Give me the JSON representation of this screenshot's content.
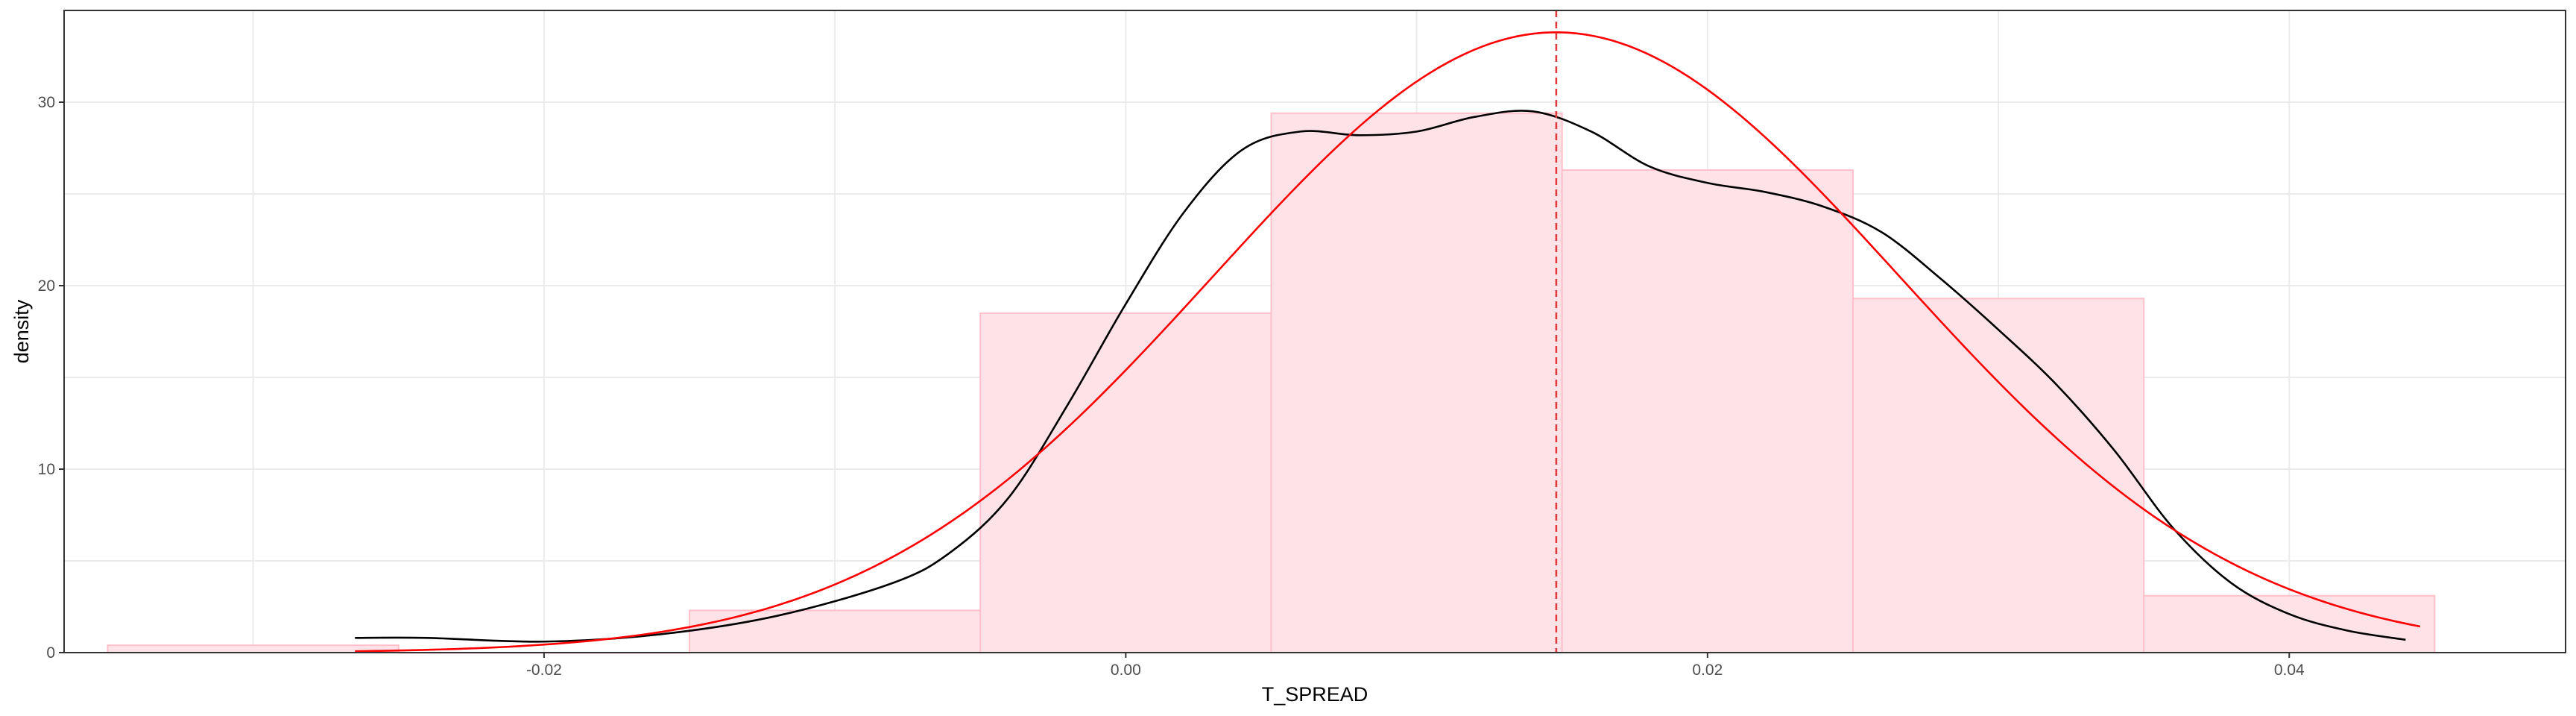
{
  "chart_data": {
    "type": "histogram",
    "title": "",
    "xlabel": "T_SPREAD",
    "ylabel": "density",
    "xlim": [
      -0.0365,
      0.0495
    ],
    "ylim": [
      0,
      35
    ],
    "grid": true,
    "x_ticks": [
      -0.02,
      0.0,
      0.02,
      0.04
    ],
    "x_tick_labels": [
      "-0.02",
      "0.00",
      "0.02",
      "0.04"
    ],
    "y_ticks": [
      0,
      10,
      20,
      30
    ],
    "y_tick_labels": [
      "0",
      "10",
      "20",
      "30"
    ],
    "bins": [
      {
        "x0": -0.035,
        "x1": -0.025,
        "density": 0.4
      },
      {
        "x0": -0.025,
        "x1": -0.015,
        "density": 0.0
      },
      {
        "x0": -0.015,
        "x1": -0.005,
        "density": 2.3
      },
      {
        "x0": -0.005,
        "x1": 0.005,
        "density": 18.5
      },
      {
        "x0": 0.005,
        "x1": 0.015,
        "density": 29.4
      },
      {
        "x0": 0.015,
        "x1": 0.025,
        "density": 26.3
      },
      {
        "x0": 0.025,
        "x1": 0.035,
        "density": 19.3
      },
      {
        "x0": 0.035,
        "x1": 0.045,
        "density": 3.1
      }
    ],
    "kde": {
      "x": [
        -0.0265,
        -0.024,
        -0.02,
        -0.016,
        -0.012,
        -0.008,
        -0.006,
        -0.004,
        -0.002,
        0.0,
        0.002,
        0.004,
        0.006,
        0.008,
        0.01,
        0.012,
        0.014,
        0.016,
        0.018,
        0.02,
        0.022,
        0.024,
        0.026,
        0.028,
        0.03,
        0.032,
        0.034,
        0.036,
        0.038,
        0.04,
        0.042,
        0.044
      ],
      "y": [
        0.8,
        0.8,
        0.6,
        1.0,
        2.0,
        3.8,
        5.5,
        8.5,
        13.5,
        19.0,
        24.0,
        27.4,
        28.4,
        28.2,
        28.4,
        29.2,
        29.5,
        28.4,
        26.5,
        25.6,
        25.1,
        24.3,
        22.9,
        20.4,
        17.6,
        14.6,
        11.0,
        6.8,
        3.8,
        2.1,
        1.2,
        0.7
      ]
    },
    "normal_fit": {
      "mean": 0.0148,
      "sd": 0.0118,
      "x_range": [
        -0.0265,
        0.0445
      ]
    },
    "mean_line": {
      "x": 0.0148,
      "style": "dashed"
    },
    "colors": {
      "bar_fill": "#fde3e8",
      "bar_outline": "#ffc0cb",
      "kde_line": "#000000",
      "normal_line": "#ff0000",
      "mean_line": "#e0393e",
      "grid": "#ebebeb",
      "panel_border": "#333333"
    }
  }
}
